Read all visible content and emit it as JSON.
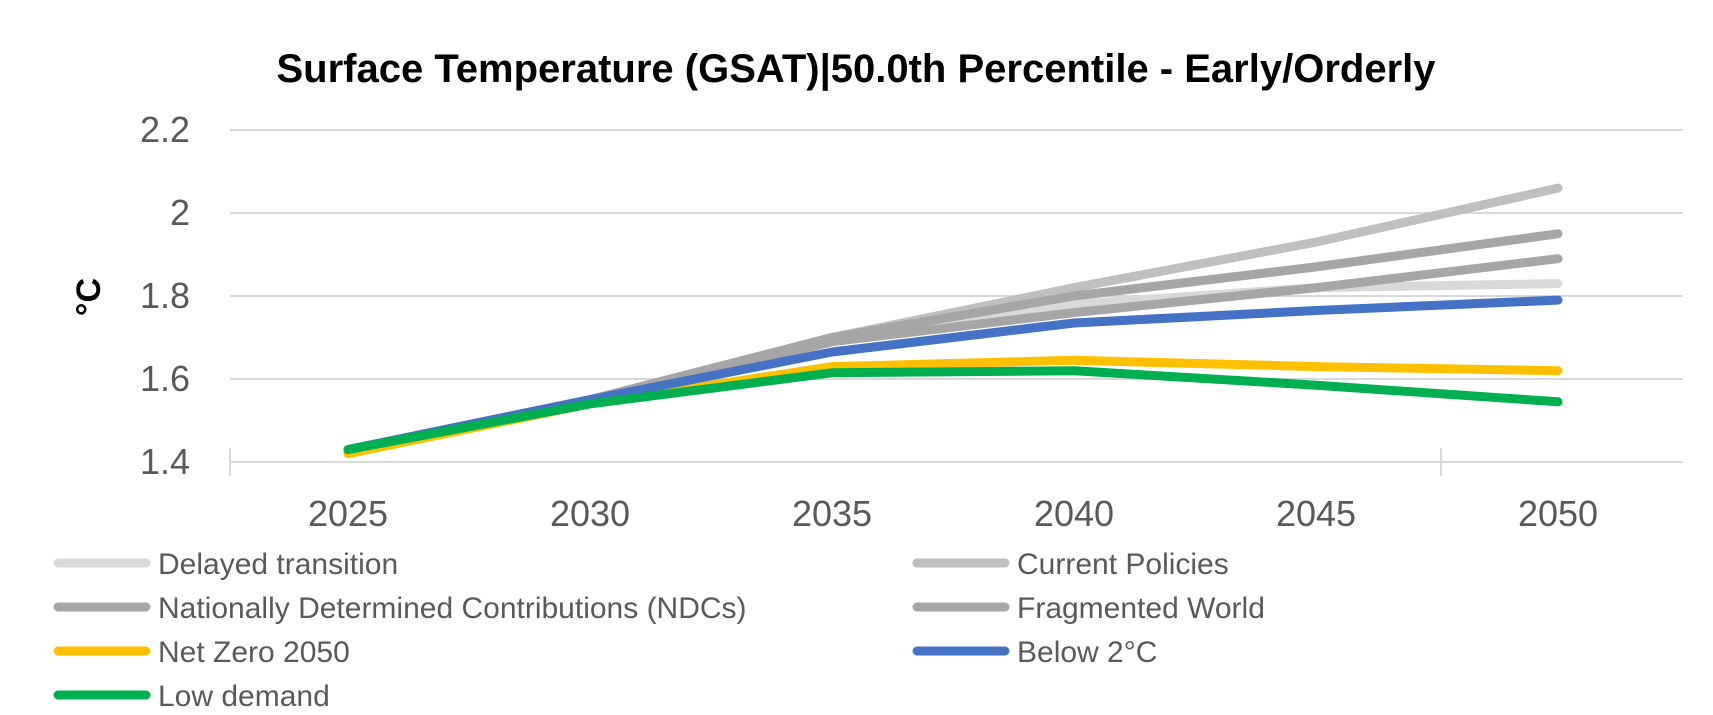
{
  "chart_data": {
    "type": "line",
    "title": "Surface Temperature (GSAT)|50.0th Percentile - Early/Orderly",
    "xlabel": "",
    "ylabel": "°C",
    "categories": [
      2025,
      2030,
      2035,
      2040,
      2045,
      2050
    ],
    "x_tick_labels": [
      "2025",
      "2030",
      "2035",
      "2040",
      "2045",
      "2050"
    ],
    "y_tick_labels": [
      "1.4",
      "1.6",
      "1.8",
      "2",
      "2.2"
    ],
    "y_ticks": [
      1.4,
      1.6,
      1.8,
      2.0,
      2.2
    ],
    "ylim": [
      1.4,
      2.2
    ],
    "grid": true,
    "legend_position": "bottom",
    "series": [
      {
        "name": "Delayed transition",
        "color": "#d9d9d9",
        "values": [
          1.43,
          1.55,
          1.69,
          1.78,
          1.82,
          1.83
        ]
      },
      {
        "name": "Current Policies",
        "color": "#bfbfbf",
        "values": [
          1.43,
          1.55,
          1.7,
          1.82,
          1.93,
          2.06
        ]
      },
      {
        "name": "Nationally Determined Contributions (NDCs)",
        "color": "#a6a6a6",
        "values": [
          1.43,
          1.55,
          1.7,
          1.8,
          1.87,
          1.95
        ]
      },
      {
        "name": "Fragmented World",
        "color": "#a6a6a6",
        "values": [
          1.43,
          1.55,
          1.69,
          1.76,
          1.82,
          1.89
        ]
      },
      {
        "name": "Net Zero 2050",
        "color": "#ffc000",
        "values": [
          1.42,
          1.54,
          1.63,
          1.645,
          1.63,
          1.62
        ]
      },
      {
        "name": "Below 2°C",
        "color": "#4472c4",
        "values": [
          1.43,
          1.55,
          1.665,
          1.735,
          1.765,
          1.79
        ]
      },
      {
        "name": "Low demand",
        "color": "#00b050",
        "values": [
          1.43,
          1.54,
          1.615,
          1.62,
          1.585,
          1.545
        ]
      }
    ]
  }
}
